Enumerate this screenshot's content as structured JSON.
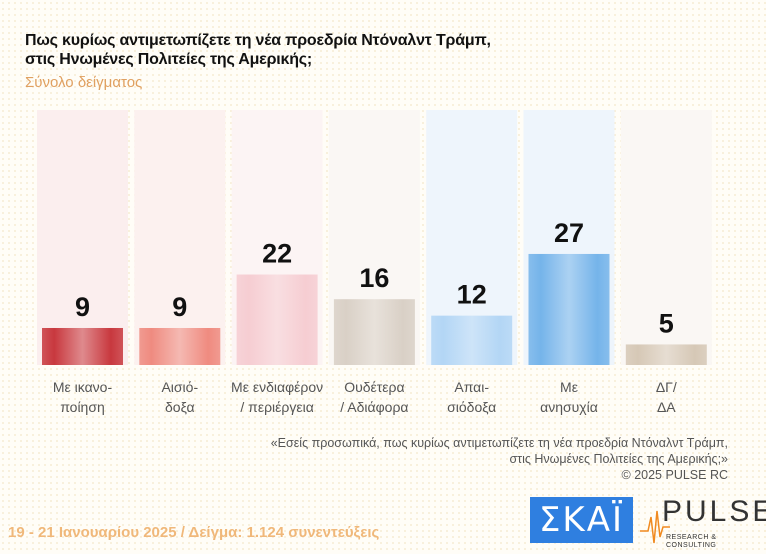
{
  "title_lines": [
    "Πως κυρίως αντιμετωπίζετε τη νέα προεδρία Ντόναλντ Τράμπ,",
    "στις Ηνωμένες Πολιτείες της Αμερικής;"
  ],
  "subtitle": "Σύνολο δείγματος",
  "chart_data": {
    "type": "bar",
    "categories": [
      [
        "Με ικανο-",
        "ποίηση"
      ],
      [
        "Αισιό-",
        "δοξα"
      ],
      [
        "Με ενδιαφέρον",
        "/ περιέργεια"
      ],
      [
        "Ουδέτερα",
        "/ Αδιάφορα"
      ],
      [
        "Απαι-",
        "σιόδοξα"
      ],
      [
        "Με",
        "ανησυχία"
      ],
      [
        "ΔΓ/",
        "ΔΑ"
      ]
    ],
    "values": [
      9,
      9,
      22,
      16,
      12,
      27,
      5
    ],
    "colors": [
      "#c8383e",
      "#ef8b80",
      "#f6cdd2",
      "#d9d0c6",
      "#b3d6f5",
      "#75b4ea",
      "#d6c8b6"
    ],
    "bg_colors": [
      "#fbeeee",
      "#fcf1ef",
      "#fcf4f4",
      "#faf7f4",
      "#eef5fc",
      "#eef5fc",
      "#faf7f4"
    ],
    "ylim": [
      0,
      62
    ]
  },
  "note_lines": [
    "«Εσείς προσωπικά, πως κυρίως αντιμετωπίζετε τη νέα προεδρία Ντόναλντ Τράμπ,",
    "στις Ηνωμένες Πολιτείες της Αμερικής;»",
    "©  2025  PULSE RC"
  ],
  "footer": "19 - 21 Ιανουαρίου 2025  /  Δείγμα:  1.124 συνεντεύξεις",
  "logos": {
    "skai": "ΣΚΑΪ",
    "pulse": "PULSE",
    "pulse_sub": "RESEARCH & CONSULTING"
  }
}
